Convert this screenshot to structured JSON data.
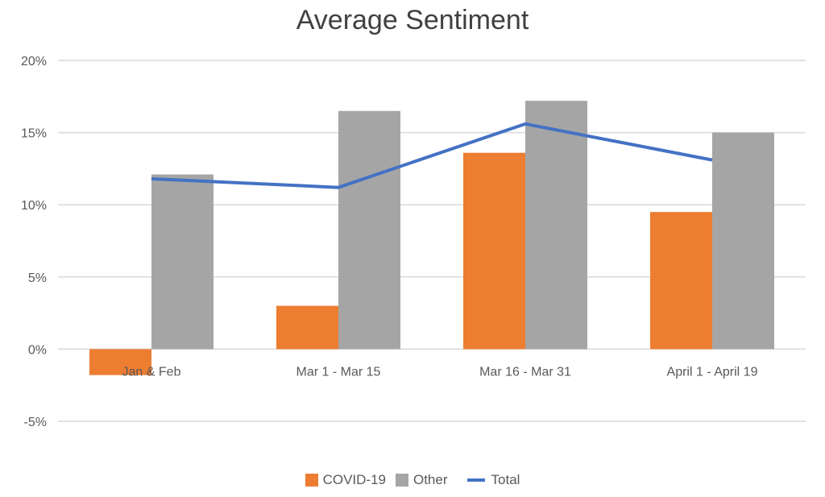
{
  "chart_data": {
    "type": "bar",
    "title": "Average Sentiment",
    "categories": [
      "Jan & Feb",
      "Mar 1 - Mar 15",
      "Mar 16 - Mar 31",
      "April 1 - April 19"
    ],
    "series": [
      {
        "name": "COVID-19",
        "type": "bar",
        "values": [
          -1.8,
          3.0,
          13.6,
          9.5
        ]
      },
      {
        "name": "Other",
        "type": "bar",
        "values": [
          12.1,
          16.5,
          17.2,
          15.0
        ]
      },
      {
        "name": "Total",
        "type": "line",
        "values": [
          11.8,
          11.2,
          15.6,
          13.1
        ]
      }
    ],
    "yticks": [
      "20%",
      "15%",
      "10%",
      "5%",
      "0%",
      "-5%"
    ],
    "ytick_values": [
      20,
      15,
      10,
      5,
      0,
      -5
    ],
    "ylim": [
      -5,
      20
    ],
    "grid": true,
    "legend_position": "bottom",
    "colors": {
      "covid": "#ED7D31",
      "other": "#A5A5A5",
      "total": "#4472C4",
      "grid": "#D9D9D9"
    }
  }
}
